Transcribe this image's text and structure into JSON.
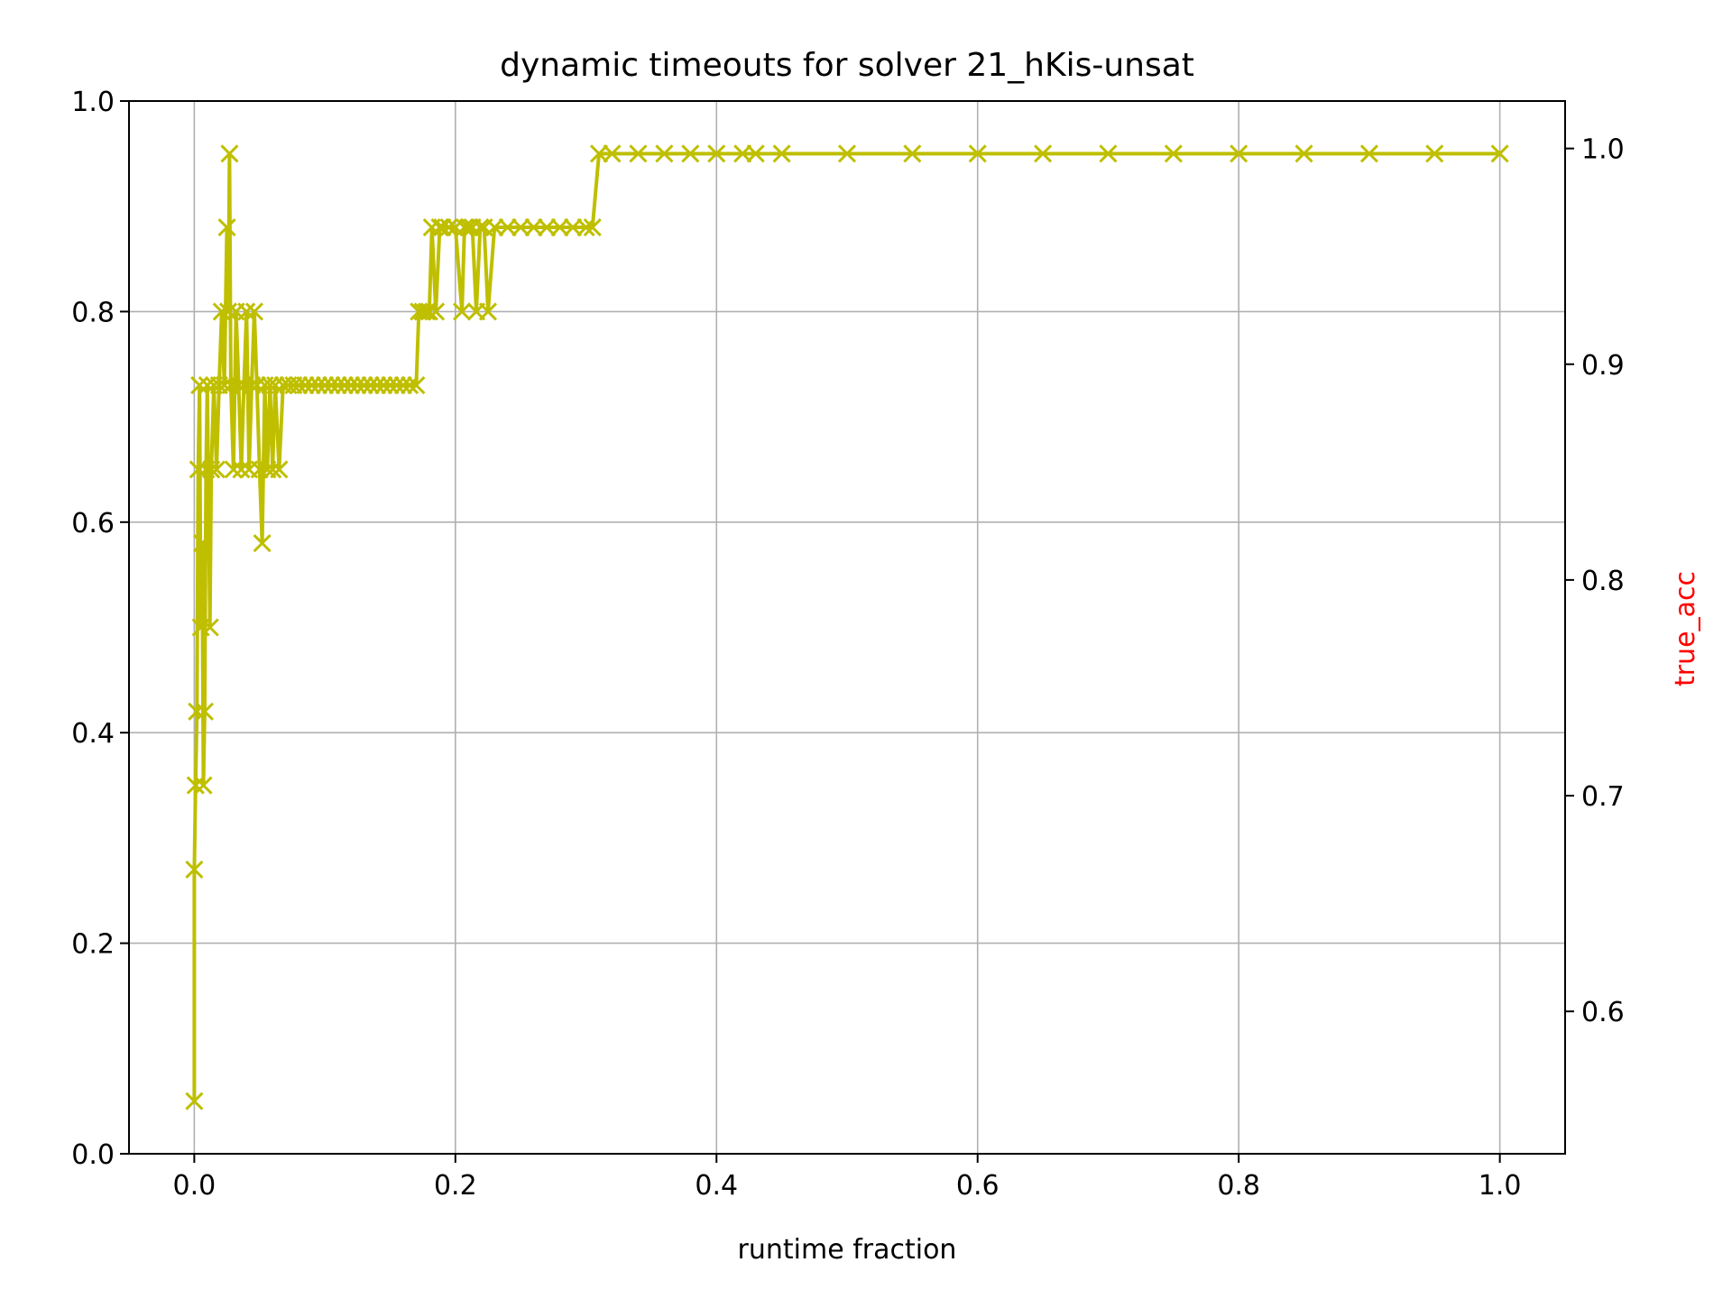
{
  "chart_data": {
    "type": "line",
    "title": "dynamic timeouts for solver 21_hKis-unsat",
    "xlabel": "runtime fraction",
    "ylabel": "",
    "y2label": "true_acc",
    "xlim": [
      -0.05,
      1.05
    ],
    "ylim": [
      0.0,
      1.0
    ],
    "y2lim": [
      0.534,
      1.022
    ],
    "xticks": [
      "0.0",
      "0.2",
      "0.4",
      "0.6",
      "0.8",
      "1.0"
    ],
    "yticks": [
      "0.0",
      "0.2",
      "0.4",
      "0.6",
      "0.8",
      "1.0"
    ],
    "y2ticks": [
      "0.6",
      "0.7",
      "0.8",
      "0.9",
      "1.0"
    ],
    "grid": true,
    "series": [
      {
        "color": "#bfbf00",
        "marker": "x",
        "x": [
          0.0,
          0.0,
          0.001,
          0.002,
          0.003,
          0.004,
          0.005,
          0.006,
          0.007,
          0.008,
          0.009,
          0.01,
          0.012,
          0.013,
          0.015,
          0.017,
          0.019,
          0.021,
          0.023,
          0.025,
          0.026,
          0.027,
          0.028,
          0.03,
          0.032,
          0.034,
          0.036,
          0.038,
          0.04,
          0.042,
          0.044,
          0.046,
          0.048,
          0.05,
          0.052,
          0.054,
          0.056,
          0.058,
          0.06,
          0.062,
          0.065,
          0.068,
          0.072,
          0.076,
          0.08,
          0.085,
          0.09,
          0.095,
          0.1,
          0.105,
          0.11,
          0.115,
          0.12,
          0.125,
          0.13,
          0.135,
          0.14,
          0.145,
          0.15,
          0.155,
          0.16,
          0.165,
          0.17,
          0.172,
          0.175,
          0.178,
          0.18,
          0.182,
          0.185,
          0.188,
          0.19,
          0.195,
          0.2,
          0.205,
          0.207,
          0.21,
          0.213,
          0.216,
          0.219,
          0.222,
          0.225,
          0.23,
          0.24,
          0.25,
          0.26,
          0.27,
          0.28,
          0.29,
          0.3,
          0.305,
          0.31,
          0.32,
          0.34,
          0.36,
          0.38,
          0.4,
          0.42,
          0.43,
          0.45,
          0.5,
          0.55,
          0.6,
          0.65,
          0.7,
          0.75,
          0.8,
          0.85,
          0.9,
          0.95,
          1.0
        ],
        "y": [
          0.05,
          0.27,
          0.35,
          0.42,
          0.65,
          0.73,
          0.5,
          0.58,
          0.35,
          0.42,
          0.65,
          0.73,
          0.5,
          0.65,
          0.73,
          0.65,
          0.73,
          0.8,
          0.73,
          0.88,
          0.8,
          0.95,
          0.73,
          0.65,
          0.8,
          0.73,
          0.65,
          0.73,
          0.8,
          0.65,
          0.73,
          0.8,
          0.73,
          0.65,
          0.58,
          0.73,
          0.65,
          0.73,
          0.65,
          0.73,
          0.65,
          0.73,
          0.73,
          0.73,
          0.73,
          0.73,
          0.73,
          0.73,
          0.73,
          0.73,
          0.73,
          0.73,
          0.73,
          0.73,
          0.73,
          0.73,
          0.73,
          0.73,
          0.73,
          0.73,
          0.73,
          0.73,
          0.73,
          0.8,
          0.8,
          0.8,
          0.8,
          0.88,
          0.8,
          0.88,
          0.88,
          0.88,
          0.88,
          0.8,
          0.88,
          0.88,
          0.88,
          0.8,
          0.88,
          0.88,
          0.8,
          0.88,
          0.88,
          0.88,
          0.88,
          0.88,
          0.88,
          0.88,
          0.88,
          0.88,
          0.95,
          0.95,
          0.95,
          0.95,
          0.95,
          0.95,
          0.95,
          0.95,
          0.95,
          0.95,
          0.95,
          0.95,
          0.95,
          0.95,
          0.95,
          0.95,
          0.95,
          0.95,
          0.95,
          0.95
        ]
      }
    ]
  }
}
